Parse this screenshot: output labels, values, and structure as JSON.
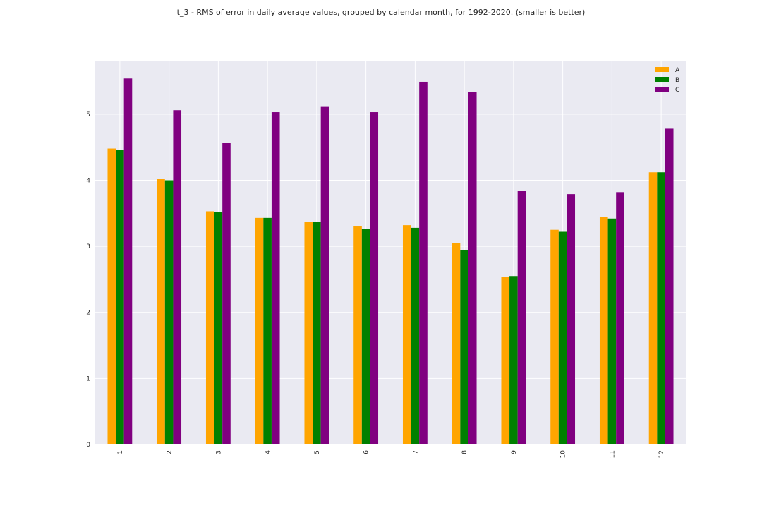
{
  "chart_data": {
    "type": "bar",
    "title": "t_3 - RMS of error in daily average values, grouped by calendar month, for 1992-2020. (smaller is better)",
    "categories": [
      "1",
      "2",
      "3",
      "4",
      "5",
      "6",
      "7",
      "8",
      "9",
      "10",
      "11",
      "12"
    ],
    "series": [
      {
        "name": "A",
        "color": "#ffa500",
        "values": [
          4.48,
          4.02,
          3.53,
          3.43,
          3.37,
          3.3,
          3.32,
          3.05,
          2.54,
          3.25,
          3.44,
          4.12
        ]
      },
      {
        "name": "B",
        "color": "#008000",
        "values": [
          4.46,
          4.0,
          3.52,
          3.43,
          3.37,
          3.26,
          3.28,
          2.94,
          2.55,
          3.22,
          3.42,
          4.12
        ]
      },
      {
        "name": "C",
        "color": "#800080",
        "values": [
          5.54,
          5.06,
          4.57,
          5.03,
          5.12,
          5.03,
          5.49,
          5.34,
          3.84,
          3.79,
          3.82,
          4.78
        ]
      }
    ],
    "yticks": [
      "0",
      "1",
      "2",
      "3",
      "4",
      "5"
    ],
    "ylim": [
      0,
      5.81
    ],
    "xlabel": "",
    "ylabel": "",
    "grid": true,
    "legend_position": "top-right",
    "background": "#eaeaf2"
  }
}
